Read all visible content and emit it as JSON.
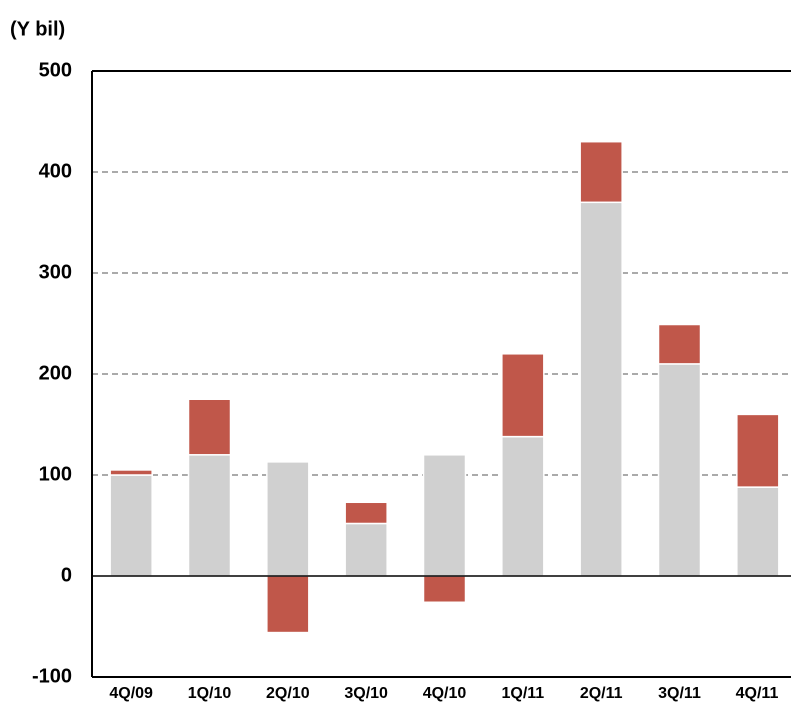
{
  "chart_data": {
    "type": "stacked_bar",
    "y_axis_label": "(Y bil)",
    "categories": [
      "4Q/09",
      "1Q/10",
      "2Q/10",
      "3Q/10",
      "4Q/10",
      "1Q/11",
      "2Q/11",
      "3Q/11",
      "4Q/11"
    ],
    "series": [
      {
        "color": "#d0d0d0",
        "values": [
          100,
          120,
          113,
          52,
          120,
          138,
          370,
          210,
          88
        ]
      },
      {
        "color": "#c0574a",
        "values": [
          5,
          55,
          -56,
          21,
          -26,
          82,
          60,
          39,
          72
        ]
      }
    ],
    "ylim": [
      -100,
      500
    ],
    "yticks": [
      -100,
      0,
      100,
      200,
      300,
      400,
      500
    ],
    "grid": true
  }
}
